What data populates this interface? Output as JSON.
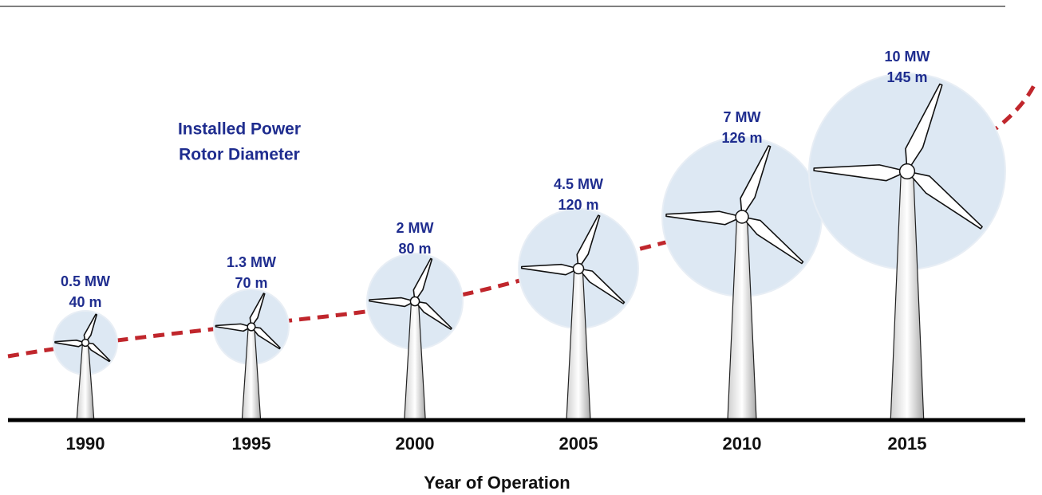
{
  "legend": {
    "line1": "Installed Power",
    "line2": "Rotor Diameter"
  },
  "turbines": [
    {
      "power": "0.5 MW",
      "diameter": "40 m",
      "year": "1990"
    },
    {
      "power": "1.3 MW",
      "diameter": "70 m",
      "year": "1995"
    },
    {
      "power": "2 MW",
      "diameter": "80 m",
      "year": "2000"
    },
    {
      "power": "4.5 MW",
      "diameter": "120 m",
      "year": "2005"
    },
    {
      "power": "7 MW",
      "diameter": "126 m",
      "year": "2010"
    },
    {
      "power": "10 MW",
      "diameter": "145 m",
      "year": "2015"
    }
  ],
  "axis_label": "Year of Operation"
}
